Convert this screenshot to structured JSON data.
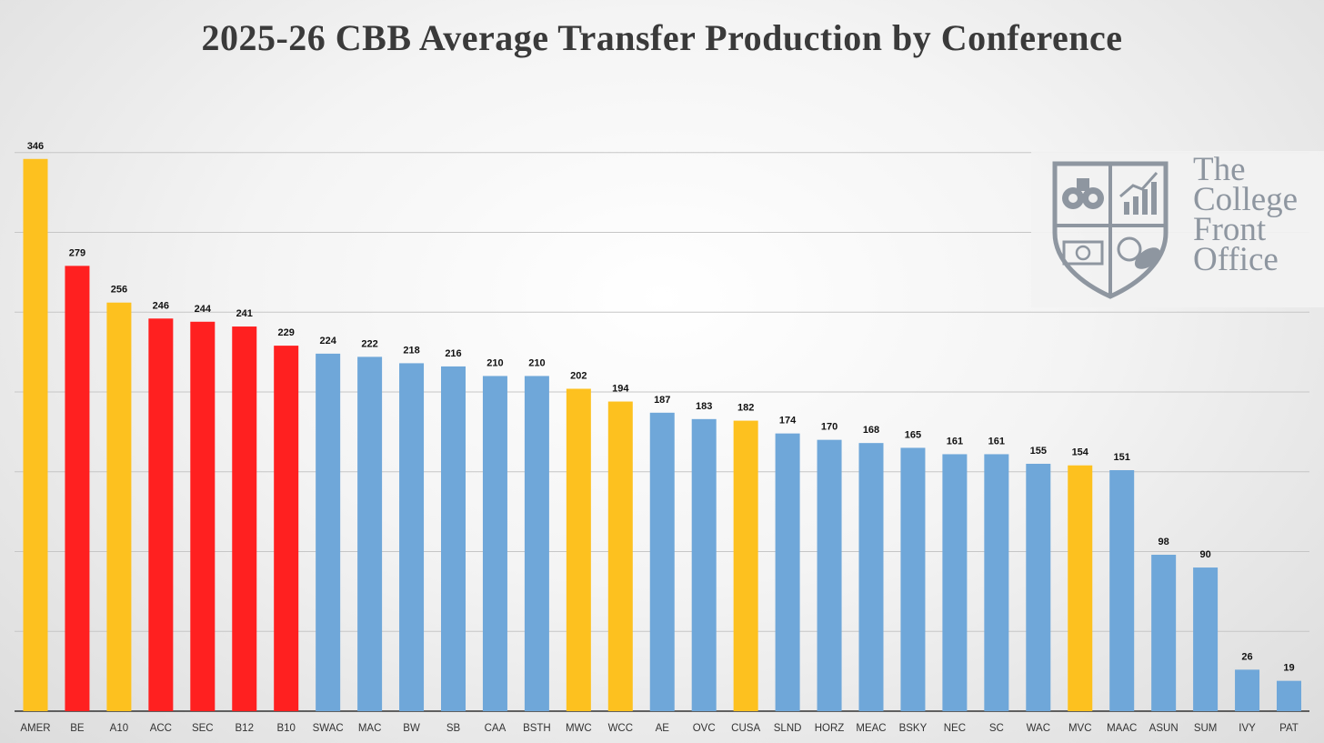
{
  "colors": {
    "gold": "#FDC11F",
    "red": "#FF2020",
    "blue": "#6FA7D9",
    "gridline": "#c6c6c6",
    "logo_gray": "#8e96a0"
  },
  "logo": {
    "icon": "shield-logo-icon",
    "lines": [
      "The",
      "College",
      "Front",
      "Office"
    ]
  },
  "chart_data": {
    "type": "bar",
    "title": "2025-26 CBB Average Transfer Production by Conference",
    "xlabel": "",
    "ylabel": "",
    "ylim": [
      0,
      350
    ],
    "grid": true,
    "categories": [
      "AMER",
      "BE",
      "A10",
      "ACC",
      "SEC",
      "B12",
      "B10",
      "SWAC",
      "MAC",
      "BW",
      "SB",
      "CAA",
      "BSTH",
      "MWC",
      "WCC",
      "AE",
      "OVC",
      "CUSA",
      "SLND",
      "HORZ",
      "MEAC",
      "BSKY",
      "NEC",
      "SC",
      "WAC",
      "MVC",
      "MAAC",
      "ASUN",
      "SUM",
      "IVY",
      "PAT"
    ],
    "values": [
      346,
      279,
      256,
      246,
      244,
      241,
      229,
      224,
      222,
      218,
      216,
      210,
      210,
      202,
      194,
      187,
      183,
      182,
      174,
      170,
      168,
      165,
      161,
      161,
      155,
      154,
      151,
      98,
      90,
      26,
      19
    ],
    "data_labels": [
      "346",
      "279",
      "256",
      "246",
      "244",
      "241",
      "229",
      "224",
      "222",
      "218",
      "216",
      "210",
      "210",
      "202",
      "194",
      "187",
      "183",
      "182",
      "174",
      "170",
      "168",
      "165",
      "161",
      "161",
      "155",
      "154",
      "151",
      "98",
      "90",
      "26",
      "19"
    ],
    "bar_colors": [
      "gold",
      "red",
      "gold",
      "red",
      "red",
      "red",
      "red",
      "blue",
      "blue",
      "blue",
      "blue",
      "blue",
      "blue",
      "gold",
      "gold",
      "blue",
      "blue",
      "gold",
      "blue",
      "blue",
      "blue",
      "blue",
      "blue",
      "blue",
      "blue",
      "gold",
      "blue",
      "blue",
      "blue",
      "blue",
      "blue"
    ]
  }
}
